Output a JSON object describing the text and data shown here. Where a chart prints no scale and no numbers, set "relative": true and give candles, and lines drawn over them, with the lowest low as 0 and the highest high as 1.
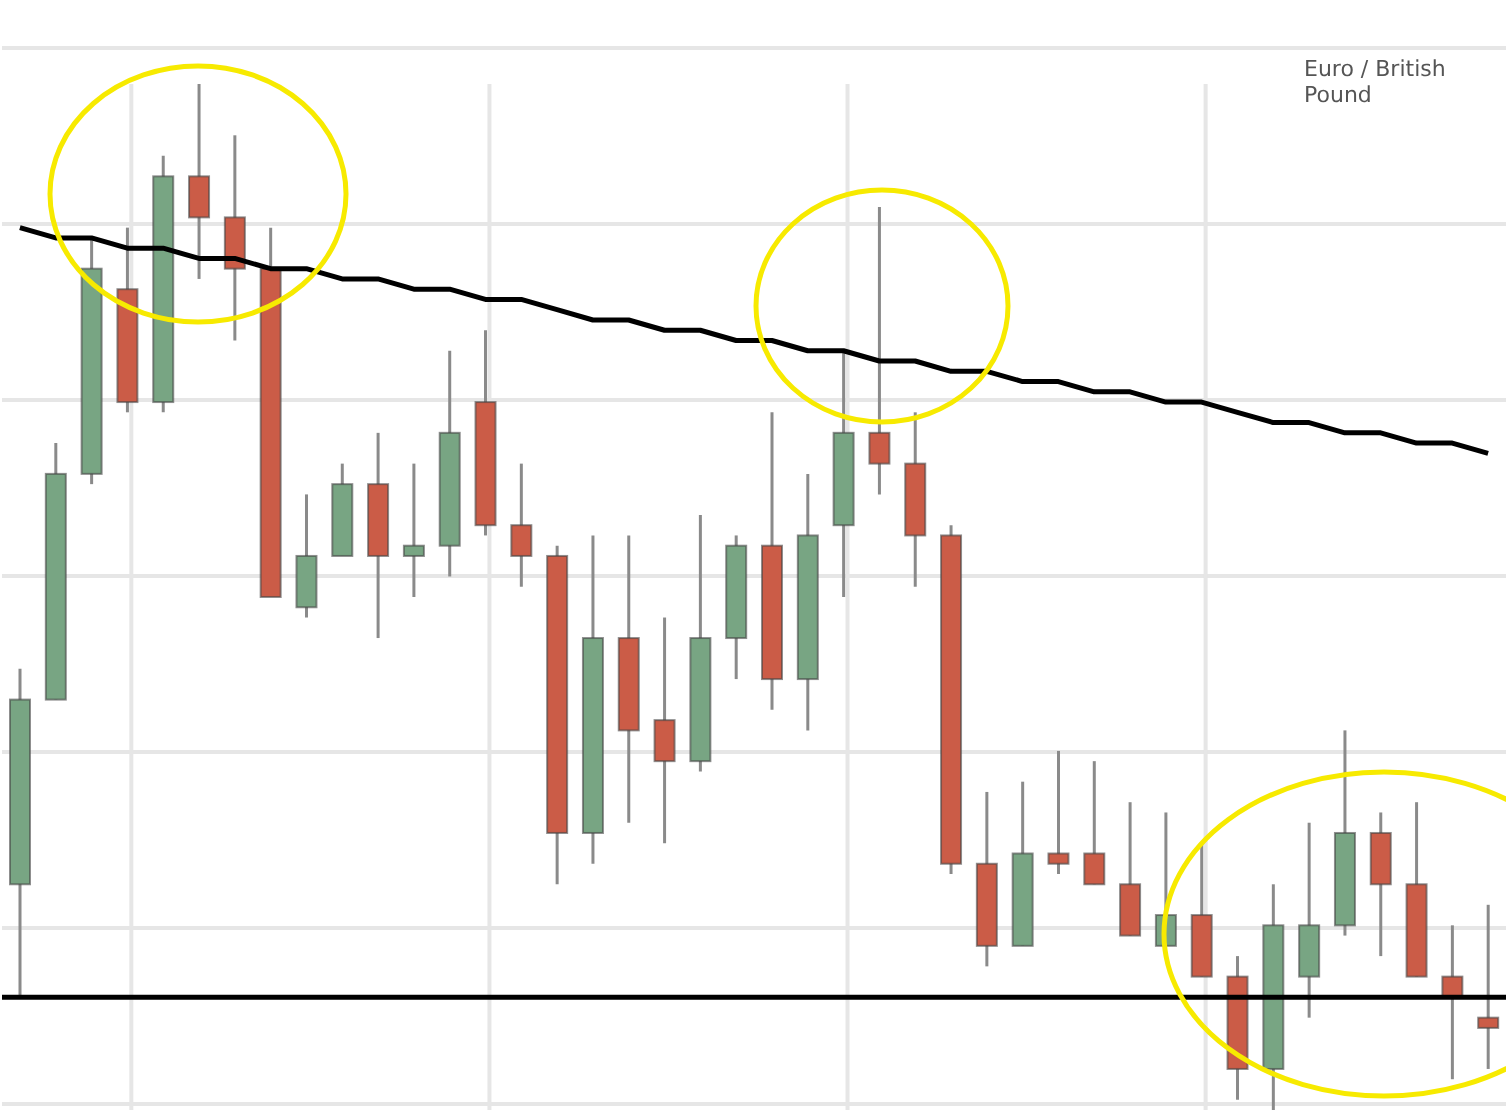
{
  "chart_data": {
    "type": "candlestick",
    "title": "Euro / British Pound",
    "relative": true,
    "grid": true,
    "categories": [
      null,
      null,
      null,
      null,
      null,
      null,
      null,
      null,
      null,
      null,
      null,
      null,
      null,
      null,
      null,
      null,
      null,
      null,
      null,
      null,
      null,
      null,
      null,
      null,
      null,
      null,
      null,
      null,
      null,
      null,
      null,
      null,
      null,
      null,
      null,
      null,
      null,
      null,
      null,
      null,
      null,
      null
    ],
    "ohlc": [
      [
        0.22,
        0.43,
        0.11,
        0.4
      ],
      [
        0.4,
        0.65,
        0.4,
        0.62
      ],
      [
        0.62,
        0.85,
        0.61,
        0.82
      ],
      [
        0.8,
        0.86,
        0.68,
        0.69
      ],
      [
        0.69,
        0.93,
        0.68,
        0.91
      ],
      [
        0.91,
        1.0,
        0.81,
        0.87
      ],
      [
        0.87,
        0.95,
        0.75,
        0.82
      ],
      [
        0.82,
        0.86,
        0.5,
        0.5
      ],
      [
        0.49,
        0.6,
        0.48,
        0.54
      ],
      [
        0.54,
        0.63,
        0.54,
        0.61
      ],
      [
        0.61,
        0.66,
        0.46,
        0.54
      ],
      [
        0.54,
        0.63,
        0.5,
        0.55
      ],
      [
        0.55,
        0.74,
        0.52,
        0.66
      ],
      [
        0.69,
        0.76,
        0.56,
        0.57
      ],
      [
        0.57,
        0.63,
        0.51,
        0.54
      ],
      [
        0.54,
        0.55,
        0.22,
        0.27
      ],
      [
        0.27,
        0.56,
        0.24,
        0.46
      ],
      [
        0.46,
        0.56,
        0.28,
        0.37
      ],
      [
        0.38,
        0.48,
        0.26,
        0.34
      ],
      [
        0.34,
        0.58,
        0.33,
        0.46
      ],
      [
        0.46,
        0.56,
        0.42,
        0.55
      ],
      [
        0.55,
        0.68,
        0.39,
        0.42
      ],
      [
        0.42,
        0.62,
        0.37,
        0.56
      ],
      [
        0.57,
        0.74,
        0.5,
        0.66
      ],
      [
        0.66,
        0.88,
        0.6,
        0.63
      ],
      [
        0.63,
        0.68,
        0.51,
        0.56
      ],
      [
        0.56,
        0.57,
        0.23,
        0.24
      ],
      [
        0.24,
        0.31,
        0.14,
        0.16
      ],
      [
        0.16,
        0.32,
        0.16,
        0.25
      ],
      [
        0.25,
        0.35,
        0.23,
        0.24
      ],
      [
        0.25,
        0.34,
        0.22,
        0.22
      ],
      [
        0.22,
        0.3,
        0.17,
        0.17
      ],
      [
        0.16,
        0.29,
        0.16,
        0.19
      ],
      [
        0.19,
        0.26,
        0.13,
        0.13
      ],
      [
        0.13,
        0.15,
        0.01,
        0.04
      ],
      [
        0.04,
        0.22,
        0.0,
        0.18
      ],
      [
        0.13,
        0.28,
        0.09,
        0.18
      ],
      [
        0.18,
        0.37,
        0.17,
        0.27
      ],
      [
        0.27,
        0.29,
        0.15,
        0.22
      ],
      [
        0.22,
        0.3,
        0.13,
        0.13
      ],
      [
        0.13,
        0.18,
        0.03,
        0.11
      ],
      [
        0.09,
        0.2,
        0.04,
        0.08
      ]
    ],
    "colors": [
      "#78a583",
      "#78a583",
      "#78a583",
      "#cb5c47",
      "#78a583",
      "#cb5c47",
      "#cb5c47",
      "#cb5c47",
      "#78a583",
      "#78a583",
      "#cb5c47",
      "#78a583",
      "#78a583",
      "#cb5c47",
      "#cb5c47",
      "#cb5c47",
      "#78a583",
      "#cb5c47",
      "#cb5c47",
      "#78a583",
      "#78a583",
      "#cb5c47",
      "#78a583",
      "#78a583",
      "#cb5c47",
      "#cb5c47",
      "#cb5c47",
      "#cb5c47",
      "#78a583",
      "#cb5c47",
      "#cb5c47",
      "#cb5c47",
      "#78a583",
      "#cb5c47",
      "#cb5c47",
      "#78a583",
      "#78a583",
      "#78a583",
      "#cb5c47",
      "#cb5c47",
      "#cb5c47",
      "#cb5c47"
    ],
    "series": [
      {
        "type": "line",
        "color": "#000000",
        "values": [
          0.86,
          0.85,
          0.85,
          0.84,
          0.84,
          0.83,
          0.83,
          0.82,
          0.82,
          0.81,
          0.81,
          0.8,
          0.8,
          0.79,
          0.79,
          0.78,
          0.77,
          0.77,
          0.76,
          0.76,
          0.75,
          0.75,
          0.74,
          0.74,
          0.73,
          0.73,
          0.72,
          0.72,
          0.71,
          0.71,
          0.7,
          0.7,
          0.69,
          0.69,
          0.68,
          0.67,
          0.67,
          0.66,
          0.66,
          0.65,
          0.65,
          0.64
        ]
      }
    ],
    "ref_lines": [
      {
        "axis": "y",
        "value": 0.11,
        "color": "#000000"
      }
    ]
  }
}
